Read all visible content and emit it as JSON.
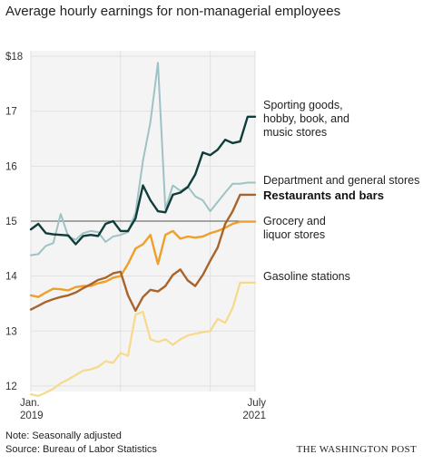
{
  "chart_data": {
    "type": "line",
    "title": "Average hourly earnings for non-managerial employees",
    "xlabel": "",
    "ylabel": "",
    "ylim": [
      11.9,
      18.1
    ],
    "yticks": [
      {
        "value": 18,
        "label": "$18"
      },
      {
        "value": 17,
        "label": "17"
      },
      {
        "value": 16,
        "label": "16"
      },
      {
        "value": 15,
        "label": "15"
      },
      {
        "value": 14,
        "label": "14"
      },
      {
        "value": 13,
        "label": "13"
      },
      {
        "value": 12,
        "label": "12"
      }
    ],
    "x_range": [
      "2019-01",
      "2021-07"
    ],
    "xticks": [
      {
        "date": "2019-01",
        "line1": "Jan.",
        "line2": "2019"
      },
      {
        "date": "2021-07",
        "line1": "July",
        "line2": "2021"
      }
    ],
    "reference_line": 15,
    "grid": true,
    "x": [
      "2019-01",
      "2019-02",
      "2019-03",
      "2019-04",
      "2019-05",
      "2019-06",
      "2019-07",
      "2019-08",
      "2019-09",
      "2019-10",
      "2019-11",
      "2019-12",
      "2020-01",
      "2020-02",
      "2020-03",
      "2020-04",
      "2020-05",
      "2020-06",
      "2020-07",
      "2020-08",
      "2020-09",
      "2020-10",
      "2020-11",
      "2020-12",
      "2021-01",
      "2021-02",
      "2021-03",
      "2021-04",
      "2021-05",
      "2021-06",
      "2021-07"
    ],
    "series": [
      {
        "name": "Sporting goods, hobby, book, and music stores",
        "color": "#0f3d3a",
        "width": 2.4,
        "values": [
          14.85,
          14.95,
          14.78,
          14.76,
          14.75,
          14.74,
          14.58,
          14.73,
          14.75,
          14.73,
          14.95,
          15.0,
          14.82,
          14.82,
          15.05,
          15.65,
          15.38,
          15.18,
          15.16,
          15.48,
          15.52,
          15.62,
          15.85,
          16.25,
          16.2,
          16.3,
          16.48,
          16.42,
          16.45,
          16.9,
          16.9
        ]
      },
      {
        "name": "Department and general stores",
        "color": "#9fc2c4",
        "width": 2.0,
        "values": [
          14.38,
          14.4,
          14.55,
          14.6,
          15.13,
          14.72,
          14.66,
          14.78,
          14.82,
          14.8,
          14.62,
          14.72,
          14.75,
          14.8,
          15.15,
          16.1,
          16.8,
          17.88,
          15.22,
          15.65,
          15.55,
          15.63,
          15.45,
          15.38,
          15.18,
          15.35,
          15.52,
          15.68,
          15.68,
          15.7,
          15.7
        ]
      },
      {
        "name": "Restaurants and bars",
        "color": "#a8642a",
        "width": 2.4,
        "bold": true,
        "values": [
          13.39,
          13.46,
          13.53,
          13.58,
          13.62,
          13.65,
          13.7,
          13.78,
          13.85,
          13.93,
          13.97,
          14.05,
          14.08,
          13.65,
          13.37,
          13.62,
          13.75,
          13.72,
          13.82,
          14.02,
          14.12,
          13.92,
          13.82,
          14.02,
          14.28,
          14.52,
          14.95,
          15.18,
          15.48,
          15.48,
          15.48
        ]
      },
      {
        "name": "Grocery and liquor stores",
        "color": "#ee9f2c",
        "width": 2.4,
        "values": [
          13.65,
          13.62,
          13.7,
          13.77,
          13.76,
          13.74,
          13.8,
          13.82,
          13.82,
          13.87,
          13.9,
          13.97,
          14.0,
          14.22,
          14.5,
          14.58,
          14.75,
          14.22,
          14.75,
          14.82,
          14.68,
          14.72,
          14.7,
          14.72,
          14.78,
          14.82,
          14.88,
          14.95,
          14.99,
          14.99,
          14.99
        ]
      },
      {
        "name": "Gasoline stations",
        "color": "#f8d98a",
        "width": 2.2,
        "values": [
          11.85,
          11.82,
          11.88,
          11.95,
          12.05,
          12.12,
          12.2,
          12.28,
          12.3,
          12.35,
          12.45,
          12.42,
          12.6,
          12.55,
          13.3,
          13.35,
          12.85,
          12.8,
          12.85,
          12.75,
          12.85,
          12.92,
          12.95,
          12.98,
          13.0,
          13.22,
          13.15,
          13.42,
          13.88,
          13.88,
          13.88
        ]
      }
    ],
    "series_labels": [
      {
        "lines": [
          "Sporting goods,",
          "hobby, book, and",
          "music stores"
        ]
      },
      {
        "lines": [
          "Department and general stores"
        ]
      },
      {
        "lines": [
          "Restaurants and bars"
        ]
      },
      {
        "lines": [
          "Grocery and",
          "liquor stores"
        ]
      },
      {
        "lines": [
          "Gasoline stations"
        ]
      }
    ]
  },
  "footer": {
    "note": "Note: Seasonally adjusted",
    "source": "Source: Bureau of Labor Statistics",
    "credit": "THE WASHINGTON POST"
  }
}
